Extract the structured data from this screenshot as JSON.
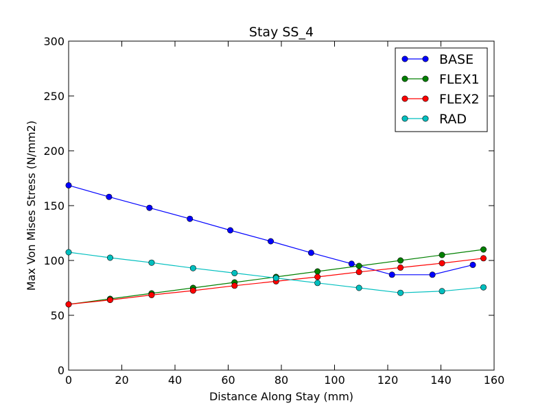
{
  "chart_data": {
    "type": "line",
    "title": "Stay SS_4",
    "xlabel": "Distance Along Stay (mm)",
    "ylabel": "Max Von Mises Stress (N/mm2)",
    "xlim": [
      0,
      160
    ],
    "ylim": [
      0,
      300
    ],
    "xticks": [
      0,
      20,
      40,
      60,
      80,
      100,
      120,
      140,
      160
    ],
    "yticks": [
      0,
      50,
      100,
      150,
      200,
      250,
      300
    ],
    "grid": false,
    "legend_position": "top-right",
    "series": [
      {
        "name": "BASE",
        "color": "#0000ff",
        "x": [
          0,
          15.2,
          30.4,
          45.6,
          60.8,
          76.0,
          91.2,
          106.4,
          121.6,
          136.8,
          152.0
        ],
        "y": [
          168.5,
          158,
          148,
          138,
          127.5,
          117.5,
          107,
          97,
          87,
          87,
          96
        ]
      },
      {
        "name": "FLEX1",
        "color": "#008000",
        "x": [
          0,
          15.6,
          31.2,
          46.8,
          62.4,
          78.0,
          93.6,
          109.2,
          124.8,
          140.4,
          156.0
        ],
        "y": [
          60,
          65,
          70,
          75,
          80,
          85,
          90,
          95,
          100,
          105,
          110
        ]
      },
      {
        "name": "FLEX2",
        "color": "#ff0000",
        "x": [
          0,
          15.6,
          31.2,
          46.8,
          62.4,
          78.0,
          93.6,
          109.2,
          124.8,
          140.4,
          156.0
        ],
        "y": [
          60,
          64,
          68.5,
          72.5,
          77,
          81,
          85,
          89.5,
          93.5,
          97.5,
          102
        ]
      },
      {
        "name": "RAD",
        "color": "#00bfbf",
        "x": [
          0,
          15.6,
          31.2,
          46.8,
          62.4,
          78.0,
          93.6,
          109.2,
          124.8,
          140.4,
          156.0
        ],
        "y": [
          107.5,
          102.5,
          98,
          93,
          88.5,
          84,
          79.5,
          75,
          70.5,
          72,
          75.5
        ]
      }
    ]
  }
}
